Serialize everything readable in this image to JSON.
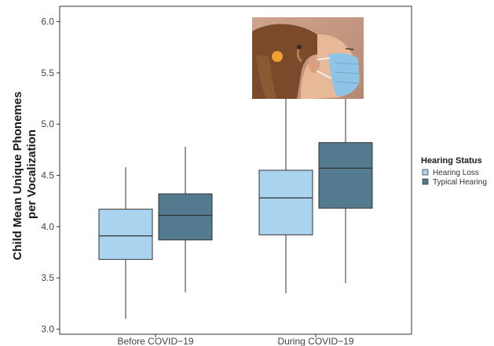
{
  "chart_data": {
    "type": "box",
    "ylabel_line1": "Child Mean Unique Phonemes",
    "ylabel_line2": "per Vocalization",
    "ylim": [
      2.95,
      6.15
    ],
    "yticks": [
      3.0,
      3.5,
      4.0,
      4.5,
      5.0,
      5.5,
      6.0
    ],
    "ytick_labels": [
      "3.0",
      "3.5",
      "4.0",
      "4.5",
      "5.0",
      "5.5",
      "6.0"
    ],
    "categories": [
      "Before COVID−19",
      "During COVID−19"
    ],
    "grid": false,
    "legend_position": "right",
    "legend": {
      "title": "Hearing Status",
      "items": [
        "Hearing Loss",
        "Typical Hearing"
      ]
    },
    "series": [
      {
        "name": "Hearing Loss",
        "color": "#a9d3ef",
        "boxes": [
          {
            "whisker_low": 3.1,
            "q1": 3.68,
            "median": 3.91,
            "q3": 4.17,
            "whisker_high": 4.58
          },
          {
            "whisker_low": 3.35,
            "q1": 3.92,
            "median": 4.28,
            "q3": 4.55,
            "whisker_high": 5.3
          }
        ]
      },
      {
        "name": "Typical Hearing",
        "color": "#537a8f",
        "boxes": [
          {
            "whisker_low": 3.36,
            "q1": 3.87,
            "median": 4.11,
            "q3": 4.32,
            "whisker_high": 4.78
          },
          {
            "whisker_low": 3.45,
            "q1": 4.18,
            "median": 4.57,
            "q3": 4.82,
            "whisker_high": 5.3
          }
        ]
      }
    ]
  },
  "inset_photo": {
    "subject": "child wearing surgical face mask and hearing aid",
    "icon": "masked-child-photo"
  }
}
